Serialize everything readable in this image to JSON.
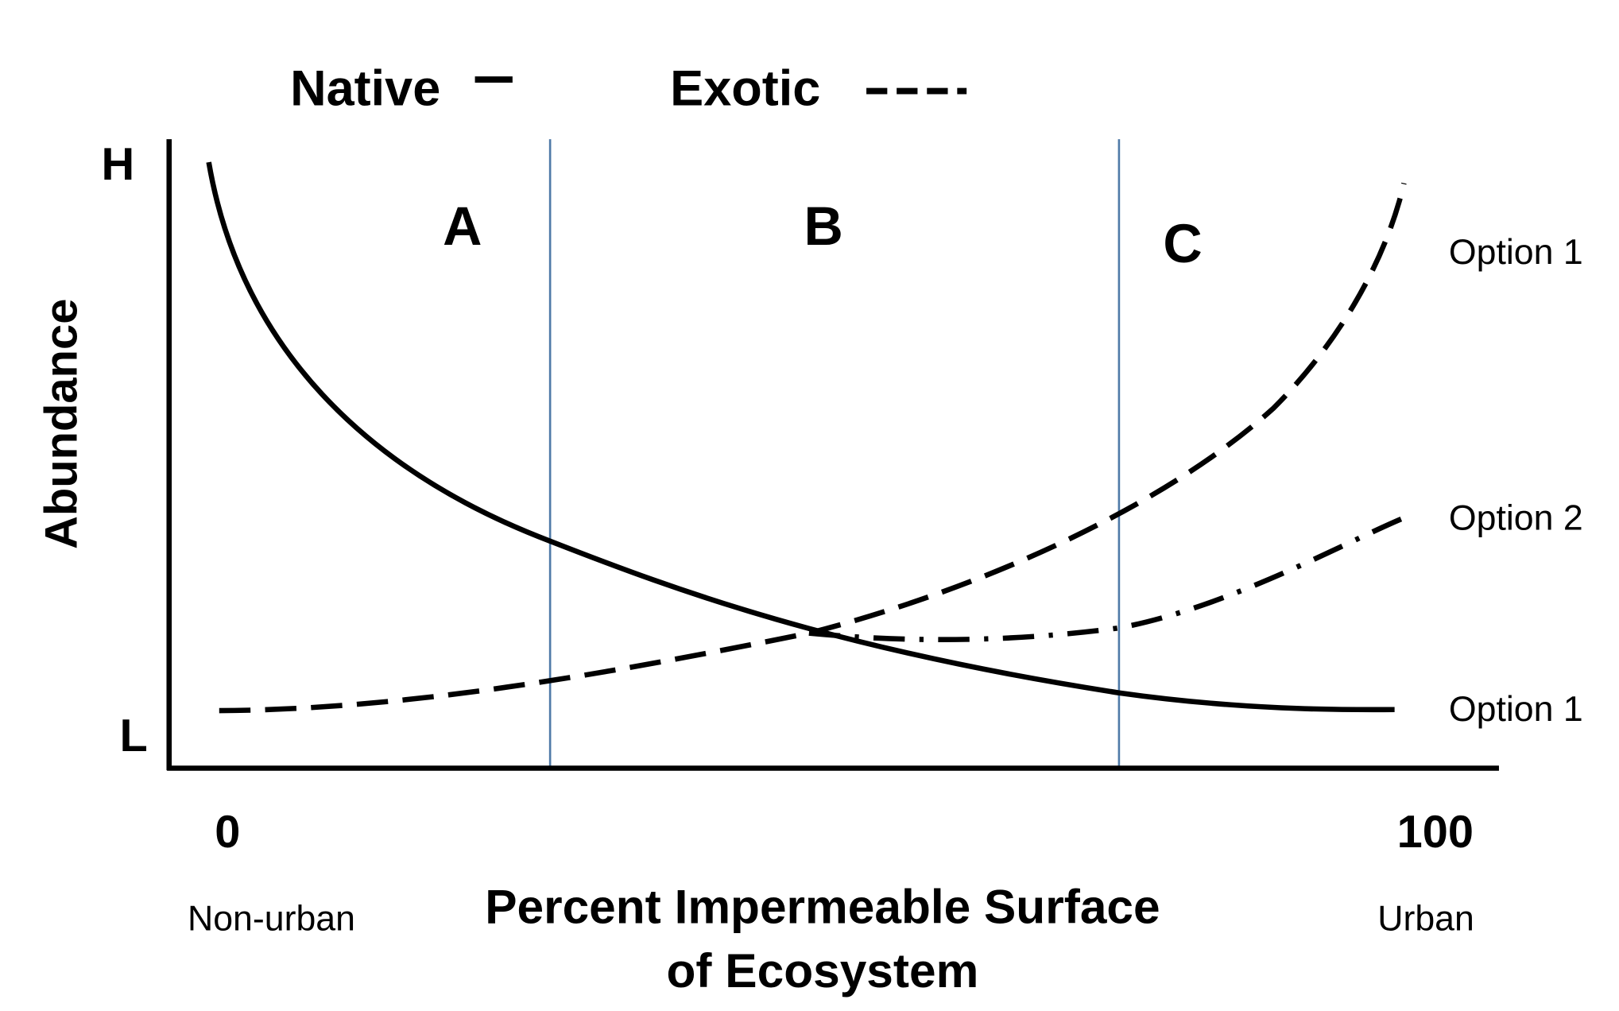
{
  "legend": {
    "native": "Native",
    "exotic": "Exotic"
  },
  "axes": {
    "y_title": "Abundance",
    "y_high": "H",
    "y_low": "L",
    "x_min": "0",
    "x_max": "100",
    "x_min_note": "Non-urban",
    "x_max_note": "Urban",
    "x_title": [
      "Percent Impermeable Surface",
      "of Ecosystem"
    ]
  },
  "zones": [
    "A",
    "B",
    "C"
  ],
  "curve_labels": [
    "Option 1",
    "Option 2",
    "Option 1"
  ]
}
